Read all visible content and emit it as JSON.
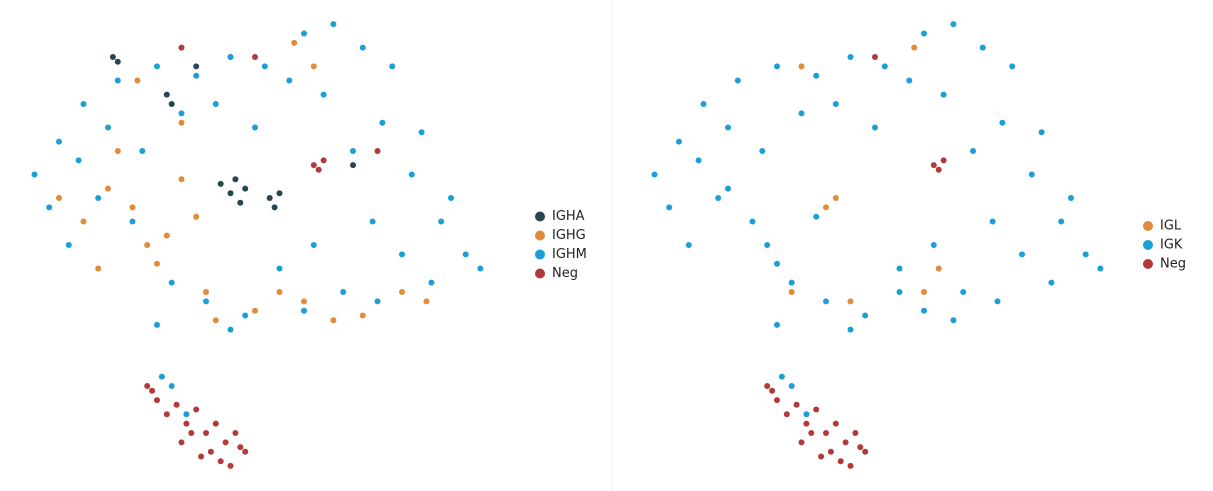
{
  "chart_data": [
    {
      "type": "scatter",
      "legend": "right",
      "xlim": [
        0,
        100
      ],
      "ylim": [
        0,
        100
      ],
      "series": [
        {
          "name": "IGHA",
          "color": "#26474f",
          "x": [
            43,
            45,
            46,
            48,
            53,
            54,
            55,
            32,
            33,
            21,
            22,
            47,
            70,
            38
          ],
          "y": [
            63,
            61,
            64,
            62,
            60,
            58,
            61,
            82,
            80,
            90,
            89,
            59,
            67,
            88
          ]
        },
        {
          "name": "IGHG",
          "color": "#e08c3a",
          "x": [
            10,
            15,
            20,
            25,
            28,
            32,
            35,
            38,
            22,
            18,
            30,
            40,
            42,
            50,
            55,
            60,
            66,
            72,
            80,
            85,
            26,
            45,
            35,
            58,
            62
          ],
          "y": [
            60,
            55,
            62,
            58,
            50,
            52,
            64,
            56,
            70,
            45,
            46,
            40,
            34,
            36,
            40,
            38,
            34,
            35,
            40,
            38,
            85,
            90,
            76,
            93,
            88
          ]
        },
        {
          "name": "IGHM",
          "color": "#1a9fd6",
          "x": [
            5,
            10,
            15,
            22,
            30,
            38,
            45,
            52,
            60,
            66,
            72,
            78,
            84,
            90,
            96,
            8,
            14,
            20,
            27,
            35,
            42,
            50,
            57,
            64,
            70,
            76,
            82,
            88,
            93,
            12,
            18,
            25,
            33,
            40,
            48,
            55,
            62,
            68,
            74,
            80,
            86,
            30,
            45,
            60,
            75,
            31,
            33,
            36
          ],
          "y": [
            65,
            72,
            80,
            85,
            88,
            86,
            90,
            88,
            95,
            97,
            92,
            88,
            74,
            60,
            45,
            58,
            68,
            75,
            70,
            78,
            80,
            75,
            85,
            82,
            70,
            76,
            65,
            55,
            48,
            50,
            60,
            55,
            42,
            38,
            35,
            45,
            50,
            40,
            55,
            48,
            42,
            33,
            32,
            36,
            38,
            22,
            20,
            14
          ]
        },
        {
          "name": "Neg",
          "color": "#b23a3a",
          "x": [
            62,
            63,
            64,
            35,
            50,
            75,
            28,
            29,
            30,
            32,
            34,
            36,
            38,
            40,
            42,
            44,
            46,
            48,
            35,
            39,
            43,
            41,
            37,
            45,
            47
          ],
          "y": [
            67,
            66,
            68,
            92,
            90,
            70,
            20,
            19,
            17,
            14,
            16,
            12,
            15,
            10,
            12,
            8,
            10,
            6,
            8,
            5,
            4,
            6,
            10,
            3,
            7
          ]
        }
      ]
    },
    {
      "type": "scatter",
      "legend": "right",
      "xlim": [
        0,
        100
      ],
      "ylim": [
        0,
        100
      ],
      "series": [
        {
          "name": "IGL",
          "color": "#e08c3a",
          "x": [
            33,
            40,
            45,
            60,
            63,
            35,
            58,
            42
          ],
          "y": [
            40,
            58,
            38,
            40,
            45,
            88,
            92,
            60
          ]
        },
        {
          "name": "IGK",
          "color": "#1a9fd6",
          "x": [
            5,
            10,
            15,
            22,
            30,
            38,
            45,
            52,
            60,
            66,
            72,
            78,
            84,
            90,
            96,
            8,
            14,
            20,
            27,
            35,
            42,
            50,
            57,
            64,
            70,
            76,
            82,
            88,
            93,
            12,
            18,
            25,
            33,
            40,
            48,
            55,
            62,
            68,
            74,
            80,
            86,
            30,
            45,
            60,
            75,
            31,
            33,
            36,
            20,
            30,
            38,
            28,
            55,
            66
          ],
          "y": [
            65,
            72,
            80,
            85,
            88,
            86,
            90,
            88,
            95,
            97,
            92,
            88,
            74,
            60,
            45,
            58,
            68,
            75,
            70,
            78,
            80,
            75,
            85,
            82,
            70,
            76,
            65,
            55,
            48,
            50,
            60,
            55,
            42,
            38,
            35,
            45,
            50,
            40,
            55,
            48,
            42,
            33,
            32,
            36,
            38,
            22,
            20,
            14,
            62,
            46,
            56,
            50,
            40,
            34
          ]
        },
        {
          "name": "Neg",
          "color": "#b23a3a",
          "x": [
            62,
            63,
            64,
            50,
            28,
            29,
            30,
            32,
            34,
            36,
            38,
            40,
            42,
            44,
            46,
            48,
            35,
            39,
            43,
            41,
            37,
            45,
            47
          ],
          "y": [
            67,
            66,
            68,
            90,
            20,
            19,
            17,
            14,
            16,
            12,
            15,
            10,
            12,
            8,
            10,
            6,
            8,
            5,
            4,
            6,
            10,
            3,
            7
          ]
        }
      ]
    }
  ]
}
